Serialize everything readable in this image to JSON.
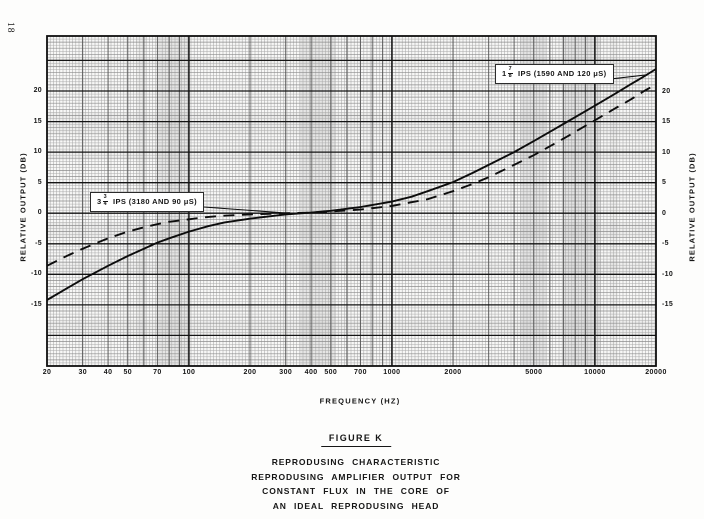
{
  "page": {
    "number": "18"
  },
  "chart_data": {
    "type": "line",
    "x_scale": "log",
    "grid": "fine graph paper, log-linear, minor lines with heavy rules each 5 dB and at decades",
    "xlabel": "FREQUENCY (HZ)",
    "ylabel_left": "RELATIVE OUTPUT (DB)",
    "ylabel_right": "RELATIVE OUTPUT (DB)",
    "xlim": [
      20,
      20000
    ],
    "ylim": [
      -25,
      29
    ],
    "x_tick_labels": [
      20,
      30,
      40,
      50,
      70,
      100,
      200,
      300,
      400,
      500,
      700,
      1000,
      2000,
      5000,
      10000,
      20000
    ],
    "y_tick_labels": [
      20,
      15,
      10,
      5,
      0,
      -5,
      -10,
      -15
    ],
    "series": [
      {
        "id": "ips-1-7-8",
        "name": "1 7/8 IPS (1590 AND 120 uS)",
        "label": {
          "whole": "1",
          "numerator": "7",
          "denominator": "8",
          "rest": "IPS (1590 AND 120 μS)"
        },
        "line_style": "solid",
        "x": [
          20,
          25,
          30,
          40,
          50,
          60,
          70,
          80,
          100,
          125,
          150,
          200,
          250,
          300,
          400,
          500,
          700,
          1000,
          1250,
          1500,
          2000,
          2500,
          3000,
          4000,
          5000,
          7000,
          10000,
          12500,
          15000,
          17500,
          20000
        ],
        "y": [
          -14.2,
          -12.3,
          -10.8,
          -8.6,
          -7.0,
          -5.8,
          -4.8,
          -4.1,
          -3.0,
          -2.1,
          -1.5,
          -0.9,
          -0.5,
          -0.2,
          0.1,
          0.4,
          1.0,
          1.9,
          2.7,
          3.6,
          5.1,
          6.6,
          7.9,
          10.0,
          11.8,
          14.6,
          17.6,
          19.5,
          21.1,
          22.4,
          23.6
        ]
      },
      {
        "id": "ips-3-3-4",
        "name": "3 3/4 IPS (3180 AND 90 uS)",
        "label": {
          "whole": "3",
          "numerator": "3",
          "denominator": "4",
          "rest": "IPS (3180 AND 90 μS)"
        },
        "line_style": "dashed",
        "x": [
          20,
          25,
          30,
          40,
          50,
          60,
          70,
          80,
          100,
          125,
          150,
          200,
          250,
          300,
          400,
          500,
          700,
          1000,
          1250,
          1500,
          2000,
          2500,
          3000,
          4000,
          5000,
          7000,
          10000,
          12500,
          15000,
          17500,
          20000
        ],
        "y": [
          -8.6,
          -7.0,
          -5.8,
          -4.1,
          -3.0,
          -2.3,
          -1.8,
          -1.4,
          -1.0,
          -0.6,
          -0.4,
          -0.2,
          -0.1,
          0.0,
          0.1,
          0.3,
          0.6,
          1.2,
          1.8,
          2.3,
          3.6,
          4.8,
          5.9,
          7.9,
          9.5,
          12.2,
          15.2,
          17.1,
          18.6,
          20.0,
          21.1
        ]
      }
    ]
  },
  "figure": {
    "title": "FIGURE K",
    "caption_lines": [
      "REPRODUSING  CHARACTERISTIC",
      "REPRODUSING AMPLIFIER OUTPUT FOR",
      "CONSTANT FLUX IN THE CORE OF",
      "AN IDEAL REPRODUSING HEAD"
    ]
  }
}
